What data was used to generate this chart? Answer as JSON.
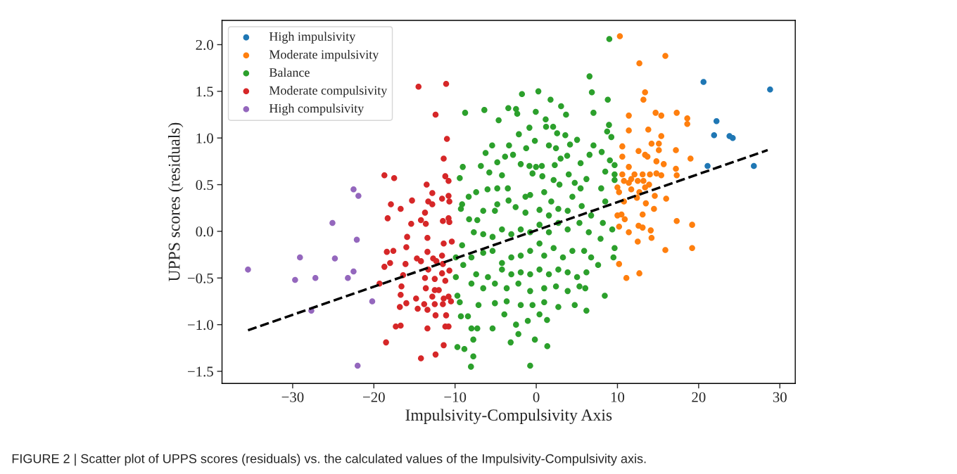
{
  "chart_data": {
    "type": "scatter",
    "xlabel": "Impulsivity-Compulsivity Axis",
    "ylabel": "UPPS scores (residuals)",
    "annotations": [
      "FIGURE 2 | Scatter plot of UPPS scores (residuals) vs. the calculated values of the Impulsivity-Compulsivity axis."
    ],
    "xlim": [
      -38.7,
      31.9
    ],
    "ylim": [
      -1.63,
      2.26
    ],
    "xticks": [
      {
        "value": -30,
        "label": "−30"
      },
      {
        "value": -20,
        "label": "−20"
      },
      {
        "value": -10,
        "label": "−10"
      },
      0,
      10,
      20,
      30
    ],
    "yticks": [
      {
        "value": -1.5,
        "label": "−1.5"
      },
      {
        "value": -1.0,
        "label": "−1.0"
      },
      {
        "value": -0.5,
        "label": "−0.5"
      },
      {
        "value": 0,
        "label": "0.0"
      },
      0.5,
      {
        "value": 1,
        "label": "1.0"
      },
      1.5,
      {
        "value": 2,
        "label": "2.0"
      }
    ],
    "grid": false,
    "legend": "top left",
    "marker": "circle",
    "series": [
      {
        "name": "High impulsivity",
        "color": "#1f77b4",
        "x": [
          20.6,
          28.8,
          22.2,
          21.9,
          23.8,
          24.2,
          21.1,
          26.8
        ],
        "values": [
          1.6,
          1.52,
          1.18,
          1.03,
          1.02,
          1.0,
          0.7,
          0.7
        ]
      },
      {
        "name": "Moderate impulsivity",
        "color": "#ff7f0e",
        "x": [
          10.3,
          15.9,
          12.7,
          13.4,
          13.2,
          14.7,
          15.4,
          17.3,
          18.6,
          18.6,
          11.4,
          11.4,
          13.8,
          15.4,
          14.2,
          15.1,
          15.1,
          10.6,
          10.6,
          12.6,
          13.4,
          13.7,
          17.2,
          19.0,
          14.8,
          15.7,
          11.4,
          17.2,
          17.3,
          10.6,
          12.1,
          13.1,
          14.0,
          14.8,
          15.4,
          10.8,
          11.4,
          11.7,
          12.5,
          13.2,
          13.9,
          10.0,
          11.7,
          10.2,
          12.7,
          13.4,
          12.4,
          14.6,
          16.0,
          10.8,
          13.5,
          14.5,
          10.0,
          10.5,
          10.9,
          13.1,
          17.3,
          19.2,
          10.2,
          12.6,
          13.1,
          11.4,
          14.1,
          14.2,
          12.5,
          15.9,
          19.2,
          10.2,
          12.7,
          11.1
        ],
        "values": [
          2.09,
          1.88,
          1.8,
          1.49,
          1.41,
          1.27,
          1.24,
          1.27,
          1.21,
          1.15,
          1.24,
          1.08,
          1.09,
          1.02,
          0.94,
          0.94,
          0.87,
          0.91,
          0.8,
          0.86,
          0.82,
          0.8,
          0.87,
          0.78,
          0.75,
          0.72,
          0.69,
          0.67,
          0.6,
          0.61,
          0.61,
          0.61,
          0.61,
          0.62,
          0.6,
          0.54,
          0.52,
          0.56,
          0.54,
          0.54,
          0.5,
          0.47,
          0.45,
          0.42,
          0.42,
          0.47,
          0.36,
          0.38,
          0.35,
          0.32,
          0.3,
          0.24,
          0.17,
          0.18,
          0.13,
          0.18,
          0.11,
          0.07,
          0.05,
          0.06,
          0.04,
          -0.01,
          0.01,
          -0.07,
          -0.11,
          -0.2,
          -0.18,
          -0.35,
          -0.45,
          -0.5
        ]
      },
      {
        "name": "Balance",
        "color": "#2ca02c",
        "x": [
          9.0,
          6.56,
          6.85,
          8.81,
          7.05,
          -1.76,
          0.26,
          1.76,
          3.06,
          3.67,
          -3.44,
          -2.49,
          -2.34,
          -0.06,
          1.16,
          2.08,
          1.21,
          -0.84,
          -4.63,
          -6.39,
          -8.76,
          8.96,
          8.73,
          9.25,
          7.05,
          5.03,
          4.16,
          3.58,
          2.57,
          1.56,
          2.43,
          -0.17,
          -1.24,
          -2.14,
          -3.35,
          -5.43,
          -6.24,
          -3.84,
          -2.86,
          -4.8,
          -6.82,
          -9.05,
          -9.42,
          -5.78,
          -1.91,
          -0.84,
          -0.03,
          0.69,
          0.75,
          -0.46,
          2.28,
          3.0,
          3.81,
          5.46,
          6.56,
          8.06,
          9.07,
          9.65,
          9.65,
          8.5,
          6.18,
          4.0,
          2.14,
          2.86,
          4.74,
          5.46,
          8.0,
          9.65,
          -4.22,
          -3.5,
          -4.8,
          -6.0,
          -7.4,
          -8.32,
          -9.13,
          -9.28,
          -8.27,
          -7.26,
          -6.53,
          -4.8,
          -5.09,
          -3.41,
          -2.54,
          -1.33,
          -0.75,
          -1.33,
          0.4,
          0.98,
          1.85,
          1.56,
          2.72,
          3.87,
          4.45,
          5.6,
          6.76,
          8.5,
          8.2,
          9.36,
          9.65,
          9.51,
          7.92,
          6.47,
          5.32,
          3.87,
          2.72,
          1.56,
          0.4,
          -0.75,
          -1.91,
          -3.07,
          -4.22,
          -5.38,
          -6.53,
          -7.69,
          -9.13,
          -9.9,
          -8.99,
          -7.98,
          -6.53,
          -5.38,
          -4.22,
          -3.07,
          -1.91,
          -0.75,
          0.4,
          0.98,
          2.14,
          3.29,
          4.45,
          5.9,
          6.76,
          7.62,
          6.18,
          5.03,
          3.87,
          2.72,
          1.56,
          0.4,
          -0.75,
          -1.91,
          -3.07,
          -4.22,
          -5.95,
          -7.4,
          -9.9,
          -7.98,
          -6.53,
          -5.09,
          -3.64,
          -2.2,
          -0.75,
          0.98,
          2.43,
          3.87,
          5.32,
          6.04,
          8.44,
          6.18,
          4.74,
          2.72,
          0.98,
          -0.46,
          -1.91,
          -3.64,
          -5.09,
          -7.11,
          -9.42,
          -9.71,
          -9.28,
          -8.41,
          -7.98,
          -7.26,
          -5.38,
          -3.93,
          -2.49,
          -1.04,
          0.4,
          1.33,
          -2.2,
          -0.17,
          1.36,
          -3.15,
          -7.75,
          -9.71,
          -8.85,
          -7.75,
          -8.04,
          -0.75
        ],
        "values": [
          2.06,
          1.66,
          1.49,
          1.41,
          1.27,
          1.47,
          1.5,
          1.41,
          1.34,
          1.25,
          1.32,
          1.31,
          1.26,
          1.28,
          1.2,
          1.12,
          1.12,
          1.11,
          1.19,
          1.3,
          1.27,
          1.14,
          1.07,
          1.01,
          0.92,
          0.98,
          0.93,
          1.03,
          1.05,
          0.92,
          0.89,
          0.97,
          0.89,
          1.04,
          0.92,
          0.92,
          0.84,
          0.8,
          0.82,
          0.74,
          0.7,
          0.69,
          0.57,
          0.63,
          0.72,
          0.7,
          0.69,
          0.7,
          0.59,
          0.62,
          0.71,
          0.78,
          0.81,
          0.73,
          0.82,
          0.85,
          0.76,
          0.71,
          0.61,
          0.64,
          0.56,
          0.61,
          0.55,
          0.5,
          0.52,
          0.46,
          0.46,
          0.55,
          0.6,
          0.46,
          0.46,
          0.45,
          0.42,
          0.37,
          0.29,
          0.24,
          0.13,
          0.12,
          0.22,
          0.29,
          0.22,
          0.33,
          0.26,
          0.2,
          0.39,
          0.37,
          0.23,
          0.42,
          0.32,
          0.17,
          0.24,
          0.22,
          0.37,
          0.27,
          0.17,
          0.32,
          0.09,
          0.02,
          -0.18,
          -0.28,
          -0.08,
          -0.01,
          0.09,
          0.02,
          0.09,
          -0.01,
          0.07,
          -0.01,
          0.02,
          -0.03,
          0.02,
          -0.06,
          -0.03,
          -0.01,
          -0.15,
          -0.28,
          -0.36,
          -0.28,
          -0.23,
          -0.21,
          -0.34,
          -0.28,
          -0.26,
          -0.21,
          -0.13,
          -0.26,
          -0.18,
          -0.28,
          -0.21,
          -0.21,
          -0.28,
          -0.36,
          -0.44,
          -0.49,
          -0.44,
          -0.41,
          -0.46,
          -0.41,
          -0.46,
          -0.44,
          -0.46,
          -0.41,
          -0.49,
          -0.46,
          -0.49,
          -0.56,
          -0.61,
          -0.56,
          -0.61,
          -0.56,
          -0.64,
          -0.61,
          -0.59,
          -0.64,
          -0.59,
          -0.61,
          -0.69,
          -0.85,
          -0.79,
          -0.81,
          -0.76,
          -0.79,
          -0.79,
          -0.75,
          -0.77,
          -0.79,
          -0.76,
          -0.69,
          -0.91,
          -0.91,
          -1.04,
          -1.04,
          -1.04,
          -0.89,
          -1.0,
          -0.96,
          -0.89,
          -0.95,
          -1.1,
          -1.16,
          -1.23,
          -1.19,
          -1.16,
          -1.24,
          -1.26,
          -1.34,
          -1.45,
          -1.44
        ]
      },
      {
        "name": "Moderate compulsivity",
        "color": "#d62728",
        "x": [
          -18.7,
          -17.5,
          -11.2,
          -10.8,
          -13.5,
          -12.8,
          -17.9,
          -16.7,
          -15.3,
          -13.3,
          -12.8,
          -11.6,
          -10.8,
          -10.7,
          -13.7,
          -18.3,
          -15.4,
          -14.2,
          -13.6,
          -11.5,
          -10.8,
          -10.7,
          -15.9,
          -13.4,
          -11.4,
          -10.4,
          -16.0,
          -18.4,
          -17.6,
          -13.4,
          -11.6,
          -14.7,
          -14.2,
          -12.7,
          -12.3,
          -11.5,
          -18.7,
          -18.0,
          -16.1,
          -13.3,
          -11.6,
          -10.7,
          -16.4,
          -13.7,
          -12.5,
          -11.2,
          -19.3,
          -16.6,
          -13.6,
          -12.5,
          -12.0,
          -16.7,
          -12.8,
          -14.8,
          -11.4,
          -10.8,
          -16.0,
          -13.8,
          -12.5,
          -11.5,
          -10.5,
          -16.8,
          -14.6,
          -13.4,
          -12.4,
          -11.1,
          -17.3,
          -16.7,
          -13.4,
          -11.2,
          -10.8,
          -18.5,
          -11.4,
          -14.2,
          -12.4,
          -14.5,
          -11.1,
          -12.4,
          -11.0,
          -11.4
        ],
        "values": [
          0.6,
          0.57,
          0.59,
          0.54,
          0.5,
          0.41,
          0.29,
          0.24,
          0.33,
          0.32,
          0.29,
          0.35,
          0.38,
          0.32,
          0.2,
          0.14,
          0.08,
          0.12,
          0.08,
          0.11,
          0.14,
          0.1,
          -0.06,
          -0.07,
          -0.13,
          -0.11,
          -0.17,
          -0.22,
          -0.21,
          -0.22,
          -0.26,
          -0.29,
          -0.32,
          -0.29,
          -0.32,
          -0.35,
          -0.38,
          -0.34,
          -0.35,
          -0.41,
          -0.45,
          -0.42,
          -0.47,
          -0.5,
          -0.51,
          -0.53,
          -0.56,
          -0.59,
          -0.61,
          -0.63,
          -0.63,
          -0.68,
          -0.7,
          -0.72,
          -0.72,
          -0.7,
          -0.77,
          -0.78,
          -0.78,
          -0.78,
          -0.75,
          -0.81,
          -0.83,
          -0.84,
          -0.9,
          -0.9,
          -1.02,
          -1.01,
          -1.04,
          -1.02,
          -1.02,
          -1.19,
          -1.22,
          -1.36,
          -1.32,
          1.55,
          1.58,
          1.25,
          0.99,
          0.78
        ]
      },
      {
        "name": "High compulsivity",
        "color": "#9467bd",
        "x": [
          -35.5,
          -22.5,
          -21.9,
          -25.1,
          -22.1,
          -29.1,
          -24.8,
          -22.5,
          -29.7,
          -27.2,
          -23.2,
          -20.2,
          -27.7,
          -22.0
        ],
        "values": [
          -0.41,
          0.45,
          0.38,
          0.09,
          -0.09,
          -0.28,
          -0.29,
          -0.43,
          -0.52,
          -0.5,
          -0.5,
          -0.75,
          -0.85,
          -1.44
        ]
      },
      {
        "type": "line",
        "color": "#000000",
        "line_style": "dashed",
        "marker": "none",
        "x": [
          -35.5,
          28.5
        ],
        "values": [
          -1.06,
          0.87
        ]
      }
    ]
  }
}
